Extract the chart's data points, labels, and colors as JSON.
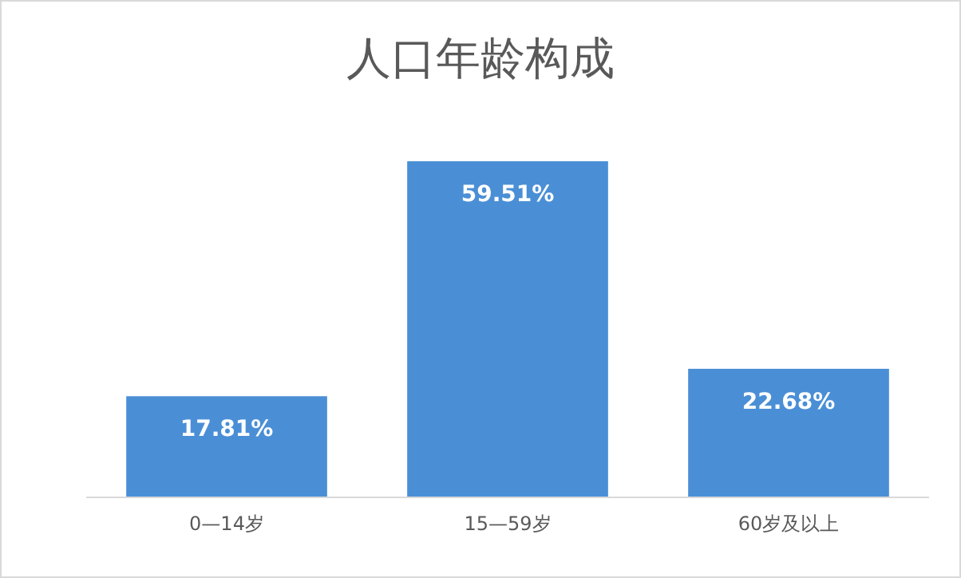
{
  "chart_data": {
    "type": "bar",
    "title": "人口年龄构成",
    "categories": [
      "0—14岁",
      "15—59岁",
      "60岁及以上"
    ],
    "values": [
      17.81,
      59.51,
      22.68
    ],
    "value_labels": [
      "17.81%",
      "59.51%",
      "22.68%"
    ],
    "color": "#4a8fd6"
  }
}
